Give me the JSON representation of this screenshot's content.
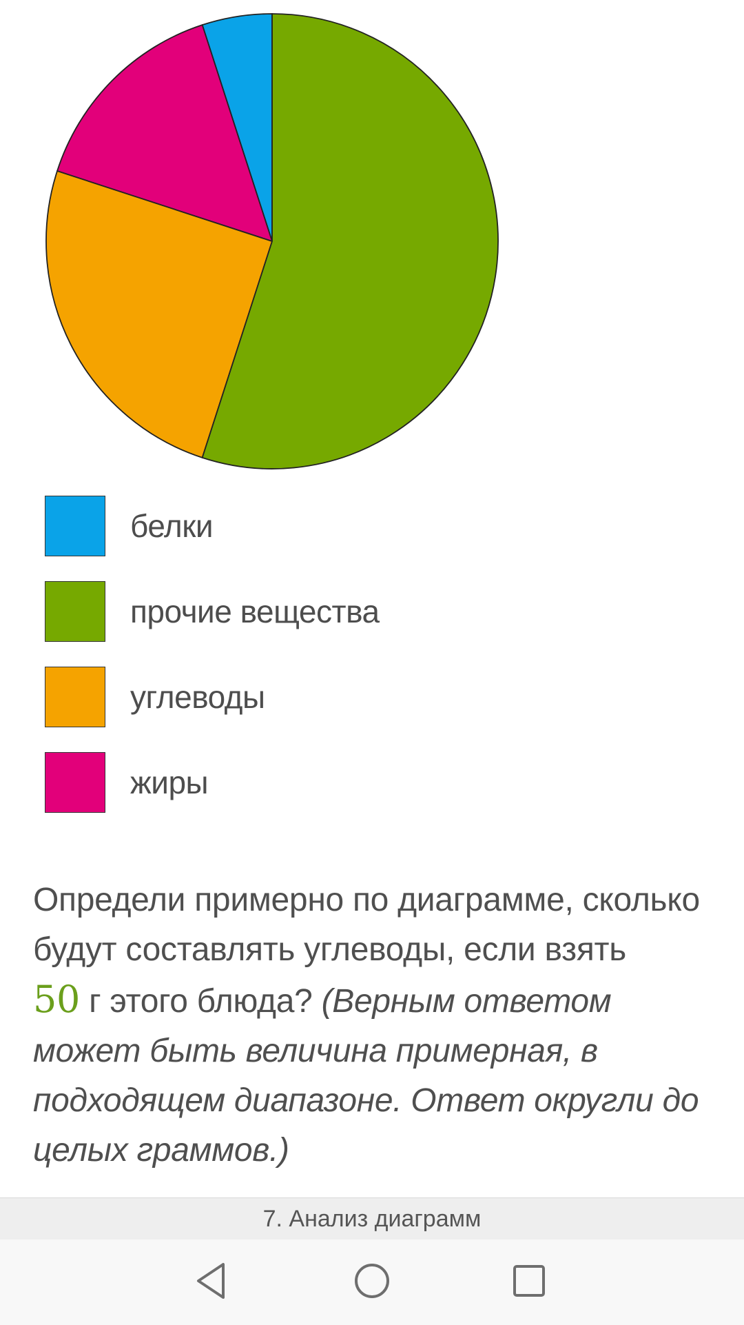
{
  "chart_data": {
    "type": "pie",
    "slices": [
      {
        "label": "белки",
        "value": 5,
        "color": "#0aa3e8"
      },
      {
        "label": "прочие вещества",
        "value": 55,
        "color": "#76a900"
      },
      {
        "label": "углеводы",
        "value": 25,
        "color": "#f5a300"
      },
      {
        "label": "жиры",
        "value": 15,
        "color": "#e2007a"
      }
    ],
    "legend_position": "bottom-left"
  },
  "legend": [
    {
      "label": "белки",
      "color": "#0aa3e8"
    },
    {
      "label": "прочие вещества",
      "color": "#76a900"
    },
    {
      "label": "углеводы",
      "color": "#f5a300"
    },
    {
      "label": "жиры",
      "color": "#e2007a"
    }
  ],
  "question": {
    "line1": "Определи примерно по диаграмме, сколько будут составлять углеводы, если взять",
    "amount": "50",
    "line2": " г этого блюда? ",
    "note": "(Верным ответом может быть величина примерная, в подходящем диапазоне. Ответ округли до целых граммов.)"
  },
  "footer": {
    "title": "7. Анализ диаграмм"
  },
  "navbar": {
    "icons": [
      "back-icon",
      "home-icon",
      "recents-icon"
    ]
  }
}
